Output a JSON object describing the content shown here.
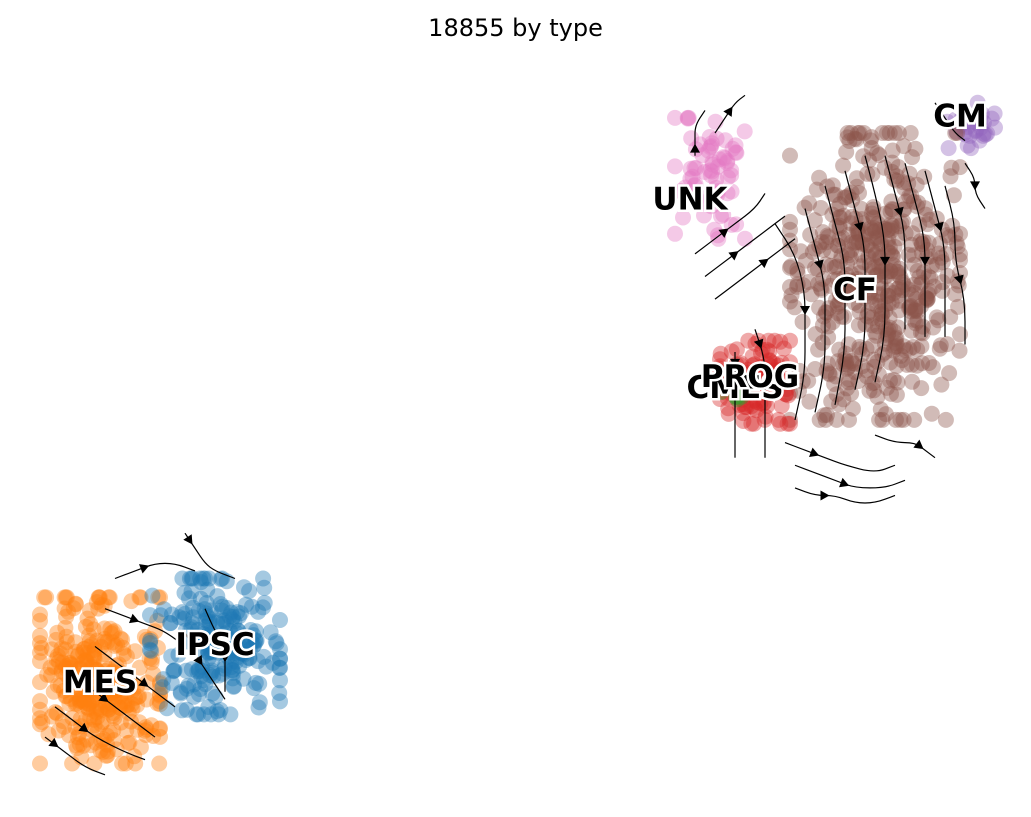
{
  "title": "18855 by type",
  "colors": {
    "IPSC": "#1f77b4",
    "MES": "#ff7f0e",
    "CMES": "#2ca02c",
    "PROG": "#d62728",
    "CM": "#9467bd",
    "CF": "#8c564b",
    "UNK": "#e377c2"
  },
  "chart_data": {
    "type": "scatter",
    "title": "18855 by type",
    "xlabel": "",
    "ylabel": "",
    "grid": false,
    "axes_visible": false,
    "legend": "on-data",
    "xlim": [
      0,
      100
    ],
    "ylim": [
      0,
      100
    ],
    "clusters": [
      {
        "name": "MES",
        "center": [
          8.5,
          16.5
        ],
        "spread": [
          6.0,
          11.0
        ],
        "n": 320
      },
      {
        "name": "IPSC",
        "center": [
          20.0,
          21.0
        ],
        "spread": [
          6.5,
          9.0
        ],
        "n": 220
      },
      {
        "name": "UNK",
        "center": [
          69.5,
          83.0
        ],
        "spread": [
          3.5,
          8.0
        ],
        "n": 70
      },
      {
        "name": "CM",
        "center": [
          95.5,
          90.0
        ],
        "spread": [
          2.5,
          3.0
        ],
        "n": 35
      },
      {
        "name": "CF",
        "center": [
          86.0,
          70.0
        ],
        "spread": [
          8.5,
          19.0
        ],
        "n": 520
      },
      {
        "name": "PROG",
        "center": [
          74.0,
          56.0
        ],
        "spread": [
          3.5,
          5.5
        ],
        "n": 120
      },
      {
        "name": "CMES",
        "center": [
          72.0,
          55.0
        ],
        "spread": [
          1.5,
          1.5
        ],
        "n": 8
      }
    ],
    "labels": [
      {
        "text": "MES",
        "x": 8.5,
        "y": 16.0
      },
      {
        "text": "IPSC",
        "x": 20.0,
        "y": 21.0
      },
      {
        "text": "UNK",
        "x": 67.5,
        "y": 80.0
      },
      {
        "text": "CM",
        "x": 94.5,
        "y": 91.0
      },
      {
        "text": "CF",
        "x": 84.0,
        "y": 68.0
      },
      {
        "text": "CMES",
        "x": 72.0,
        "y": 55.0
      },
      {
        "text": "PROG",
        "x": 73.5,
        "y": 56.5
      }
    ],
    "streamlines": [
      {
        "points": [
          [
            76,
            77
          ],
          [
            78,
            73
          ],
          [
            79,
            68
          ],
          [
            79,
            63
          ],
          [
            79,
            57
          ],
          [
            78,
            51
          ]
        ],
        "arrow_at": 3,
        "direction": "up"
      },
      {
        "points": [
          [
            79,
            79
          ],
          [
            80,
            74
          ],
          [
            81,
            69
          ],
          [
            81,
            64
          ],
          [
            81,
            58
          ],
          [
            80,
            52
          ]
        ],
        "arrow_at": 2,
        "direction": "up"
      },
      {
        "points": [
          [
            81,
            82
          ],
          [
            82,
            77
          ],
          [
            83,
            72
          ],
          [
            83,
            66
          ],
          [
            83,
            60
          ],
          [
            82,
            53
          ]
        ],
        "arrow_at": 3,
        "direction": "up"
      },
      {
        "points": [
          [
            83,
            84
          ],
          [
            84,
            79
          ],
          [
            85,
            74
          ],
          [
            85,
            68
          ],
          [
            85,
            61
          ],
          [
            84,
            55
          ]
        ],
        "arrow_at": 2,
        "direction": "up"
      },
      {
        "points": [
          [
            85,
            86
          ],
          [
            86,
            81
          ],
          [
            87,
            75
          ],
          [
            87,
            69
          ],
          [
            87,
            62
          ],
          [
            86,
            56
          ]
        ],
        "arrow_at": 3,
        "direction": "up"
      },
      {
        "points": [
          [
            87,
            86
          ],
          [
            88,
            81
          ],
          [
            89,
            76
          ],
          [
            89,
            70
          ],
          [
            89,
            63
          ]
        ],
        "arrow_at": 2,
        "direction": "up"
      },
      {
        "points": [
          [
            89,
            85
          ],
          [
            90,
            80
          ],
          [
            91,
            75
          ],
          [
            91,
            69
          ],
          [
            91,
            62
          ]
        ],
        "arrow_at": 3,
        "direction": "up"
      },
      {
        "points": [
          [
            91,
            84
          ],
          [
            92,
            79
          ],
          [
            93,
            74
          ],
          [
            93,
            68
          ],
          [
            93,
            62
          ]
        ],
        "arrow_at": 2,
        "direction": "up"
      },
      {
        "points": [
          [
            93,
            82
          ],
          [
            94,
            77
          ],
          [
            94,
            72
          ],
          [
            95,
            67
          ],
          [
            95,
            61
          ]
        ],
        "arrow_at": 3,
        "direction": "up"
      },
      {
        "points": [
          [
            74,
            63
          ],
          [
            75,
            59
          ],
          [
            75,
            55
          ],
          [
            75,
            50
          ],
          [
            75,
            46
          ]
        ],
        "arrow_at": 1,
        "direction": "up"
      },
      {
        "points": [
          [
            72,
            60
          ],
          [
            72,
            57
          ],
          [
            72,
            54
          ],
          [
            72,
            50
          ],
          [
            72,
            46
          ]
        ],
        "arrow_at": 1,
        "direction": "up"
      },
      {
        "points": [
          [
            77,
            48
          ],
          [
            79,
            47
          ],
          [
            81,
            46
          ],
          [
            83,
            45
          ],
          [
            86,
            44
          ],
          [
            88,
            45
          ]
        ],
        "arrow_at": 2,
        "direction": "right"
      },
      {
        "points": [
          [
            78,
            45
          ],
          [
            80,
            44
          ],
          [
            82,
            43
          ],
          [
            84,
            42
          ],
          [
            87,
            42
          ],
          [
            89,
            43
          ]
        ],
        "arrow_at": 3,
        "direction": "right"
      },
      {
        "points": [
          [
            78,
            42
          ],
          [
            80,
            41
          ],
          [
            82,
            41
          ],
          [
            84,
            40
          ],
          [
            86,
            40
          ],
          [
            88,
            41
          ]
        ],
        "arrow_at": 2,
        "direction": "right"
      },
      {
        "points": [
          [
            86,
            49
          ],
          [
            88,
            48
          ],
          [
            90,
            48
          ],
          [
            91,
            47
          ],
          [
            92,
            46
          ]
        ],
        "arrow_at": 3,
        "direction": "right"
      },
      {
        "points": [
          [
            68,
            73
          ],
          [
            70,
            75
          ],
          [
            72,
            77
          ],
          [
            74,
            79
          ],
          [
            75,
            81
          ]
        ],
        "arrow_at": 2,
        "direction": "up"
      },
      {
        "points": [
          [
            69,
            70
          ],
          [
            71,
            72
          ],
          [
            73,
            74
          ],
          [
            75,
            76
          ],
          [
            77,
            78
          ]
        ],
        "arrow_at": 2,
        "direction": "up"
      },
      {
        "points": [
          [
            70,
            67
          ],
          [
            72,
            69
          ],
          [
            74,
            71
          ],
          [
            76,
            73
          ],
          [
            78,
            75
          ]
        ],
        "arrow_at": 3,
        "direction": "up"
      },
      {
        "points": [
          [
            68,
            86
          ],
          [
            68,
            88
          ],
          [
            68,
            90
          ],
          [
            69,
            92
          ]
        ],
        "arrow_at": 1,
        "direction": "up"
      },
      {
        "points": [
          [
            70,
            89
          ],
          [
            71,
            91
          ],
          [
            72,
            93
          ],
          [
            73,
            94
          ]
        ],
        "arrow_at": 2,
        "direction": "up"
      },
      {
        "points": [
          [
            92,
            93
          ],
          [
            93,
            91
          ],
          [
            94,
            89
          ],
          [
            95,
            88
          ]
        ],
        "arrow_at": 1,
        "direction": "down"
      },
      {
        "points": [
          [
            95,
            85
          ],
          [
            96,
            83
          ],
          [
            96,
            81
          ],
          [
            97,
            79
          ]
        ],
        "arrow_at": 2,
        "direction": "down"
      },
      {
        "points": [
          [
            3,
            9
          ],
          [
            5,
            7
          ],
          [
            7,
            5
          ],
          [
            9,
            4
          ]
        ],
        "arrow_at": 1,
        "direction": "right"
      },
      {
        "points": [
          [
            4,
            13
          ],
          [
            6,
            11
          ],
          [
            8,
            9
          ],
          [
            11,
            7
          ],
          [
            13,
            6
          ]
        ],
        "arrow_at": 2,
        "direction": "right"
      },
      {
        "points": [
          [
            6,
            17
          ],
          [
            8,
            15
          ],
          [
            10,
            13
          ],
          [
            12,
            11
          ],
          [
            14,
            9
          ]
        ],
        "arrow_at": 2,
        "direction": "right"
      },
      {
        "points": [
          [
            8,
            21
          ],
          [
            10,
            19
          ],
          [
            12,
            17
          ],
          [
            14,
            15
          ],
          [
            16,
            13
          ]
        ],
        "arrow_at": 3,
        "direction": "right"
      },
      {
        "points": [
          [
            9,
            26
          ],
          [
            11,
            25
          ],
          [
            13,
            24
          ],
          [
            15,
            23
          ],
          [
            17,
            21
          ]
        ],
        "arrow_at": 2,
        "direction": "right"
      },
      {
        "points": [
          [
            10,
            30
          ],
          [
            12,
            31
          ],
          [
            14,
            32
          ],
          [
            16,
            32
          ],
          [
            18,
            31
          ]
        ],
        "arrow_at": 2,
        "direction": "left"
      },
      {
        "points": [
          [
            17,
            23
          ],
          [
            18,
            20
          ],
          [
            19,
            18
          ],
          [
            20,
            16
          ],
          [
            21,
            14
          ]
        ],
        "arrow_at": 2,
        "direction": "down"
      },
      {
        "points": [
          [
            19,
            26
          ],
          [
            20,
            23
          ],
          [
            21,
            21
          ],
          [
            21,
            18
          ],
          [
            21,
            15
          ]
        ],
        "arrow_at": 3,
        "direction": "down"
      },
      {
        "points": [
          [
            17,
            36
          ],
          [
            18,
            34
          ],
          [
            19,
            32
          ],
          [
            20,
            31
          ],
          [
            22,
            30
          ]
        ],
        "arrow_at": 1,
        "direction": "up"
      }
    ]
  }
}
